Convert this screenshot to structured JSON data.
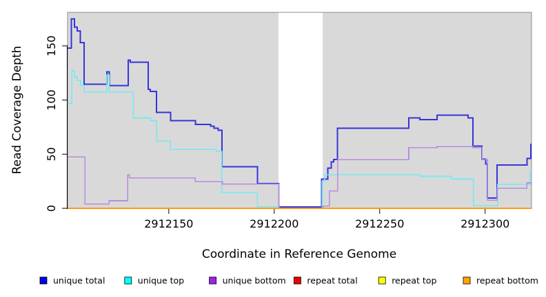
{
  "chart_data": {
    "type": "line",
    "subtype": "step",
    "title": "",
    "xlabel": "Coordinate in Reference Genome",
    "ylabel": "Read Coverage Depth",
    "x_domain": [
      2912102,
      2912322
    ],
    "y_domain": [
      0,
      181
    ],
    "x_ticks": [
      2912150,
      2912200,
      2912250,
      2912300
    ],
    "x_tick_labels": [
      "2912150",
      "2912200",
      "2912250",
      "2912300"
    ],
    "y_ticks": [
      0,
      50,
      100,
      150
    ],
    "y_tick_labels": [
      "0",
      "50",
      "100",
      "150"
    ],
    "grid": false,
    "panel_bg": "#d9d9d9",
    "panel_border": "#8c8c8c",
    "axis_color": "#000000",
    "masked_region": {
      "x_start": 2912202,
      "x_end": 2912223,
      "color": "#ffffff"
    },
    "legend_position": "bottom",
    "series": [
      {
        "name": "unique-total",
        "legend_label": "unique total",
        "swatch_color": "#0000ee",
        "line_color": "#3434d9",
        "line_width": 2,
        "end_x": 2912322,
        "steps": [
          [
            2912102,
            148
          ],
          [
            2912103.8,
            175
          ],
          [
            2912105.2,
            167.5
          ],
          [
            2912106.6,
            164
          ],
          [
            2912108.1,
            153
          ],
          [
            2912109.9,
            114.5
          ],
          [
            2912120.6,
            126
          ],
          [
            2912121.7,
            113.5
          ],
          [
            2912130.8,
            137
          ],
          [
            2912131.8,
            135
          ],
          [
            2912140.3,
            110
          ],
          [
            2912141.3,
            108
          ],
          [
            2912144.2,
            88.5
          ],
          [
            2912150.8,
            81
          ],
          [
            2912162.6,
            77.5
          ],
          [
            2912169.8,
            76
          ],
          [
            2912171.4,
            74
          ],
          [
            2912173.4,
            72
          ],
          [
            2912175.2,
            38.5
          ],
          [
            2912192,
            23
          ],
          [
            2912202.2,
            1.2
          ],
          [
            2912222.4,
            27
          ],
          [
            2912225.4,
            37
          ],
          [
            2912227,
            43
          ],
          [
            2912228.2,
            45
          ],
          [
            2912230,
            74
          ],
          [
            2912263.8,
            83.5
          ],
          [
            2912269.1,
            82
          ],
          [
            2912277.2,
            86
          ],
          [
            2912292,
            83.5
          ],
          [
            2912294.2,
            57.5
          ],
          [
            2912298.5,
            45.3
          ],
          [
            2912300.2,
            41
          ],
          [
            2912301.1,
            9.5
          ],
          [
            2912305.7,
            40
          ],
          [
            2912319.8,
            46
          ],
          [
            2912321.6,
            59
          ]
        ]
      },
      {
        "name": "unique-top",
        "legend_label": "unique top",
        "swatch_color": "#00ffff",
        "line_color": "#76e9ef",
        "line_width": 1.6,
        "end_x": 2912322,
        "steps": [
          [
            2912102,
            97
          ],
          [
            2912104.1,
            127
          ],
          [
            2912105.3,
            121
          ],
          [
            2912106.6,
            118
          ],
          [
            2912108.2,
            113.5
          ],
          [
            2912109.9,
            107.5
          ],
          [
            2912120.6,
            123
          ],
          [
            2912121.7,
            107.5
          ],
          [
            2912133.1,
            83.5
          ],
          [
            2912141.3,
            81
          ],
          [
            2912144.2,
            62
          ],
          [
            2912150.8,
            54.5
          ],
          [
            2912172.5,
            52.5
          ],
          [
            2912175.2,
            14.5
          ],
          [
            2912192,
            1.5
          ],
          [
            2912202.2,
            0
          ],
          [
            2912222.8,
            25
          ],
          [
            2912223.8,
            31
          ],
          [
            2912269.1,
            29.5
          ],
          [
            2912284,
            27
          ],
          [
            2912294.5,
            2.5
          ],
          [
            2912305.9,
            22
          ],
          [
            2912321.2,
            34
          ]
        ]
      },
      {
        "name": "unique-bottom",
        "legend_label": "unique bottom",
        "swatch_color": "#a020f0",
        "line_color": "#b78cde",
        "line_width": 1.6,
        "end_x": 2912322,
        "steps": [
          [
            2912102,
            47.5
          ],
          [
            2912110.3,
            4
          ],
          [
            2912121.7,
            7
          ],
          [
            2912130.5,
            31
          ],
          [
            2912131.4,
            28
          ],
          [
            2912162.6,
            24.5
          ],
          [
            2912175.4,
            22.5
          ],
          [
            2912202.2,
            0
          ],
          [
            2912223.1,
            2
          ],
          [
            2912226.1,
            16
          ],
          [
            2912230,
            45
          ],
          [
            2912263.8,
            56
          ],
          [
            2912277.2,
            57
          ],
          [
            2912294.2,
            56
          ],
          [
            2912298.5,
            45
          ],
          [
            2912301.1,
            7.5
          ],
          [
            2912305.7,
            18.5
          ],
          [
            2912319.8,
            23.5
          ]
        ]
      },
      {
        "name": "repeat-total",
        "legend_label": "repeat total",
        "swatch_color": "#ee0000",
        "line_color": "#ee0000",
        "line_width": 1.6,
        "end_x": 2912322,
        "steps": [
          [
            2912102,
            0
          ]
        ]
      },
      {
        "name": "repeat-top",
        "legend_label": "repeat top",
        "swatch_color": "#ffff00",
        "line_color": "#ffff00",
        "line_width": 1.6,
        "end_x": 2912322,
        "steps": [
          [
            2912102,
            0
          ]
        ]
      },
      {
        "name": "repeat-bottom",
        "legend_label": "repeat bottom",
        "swatch_color": "#ffa500",
        "line_color": "#ff9913",
        "line_width": 2.2,
        "end_x": 2912322,
        "steps": [
          [
            2912102,
            0
          ]
        ]
      }
    ]
  }
}
